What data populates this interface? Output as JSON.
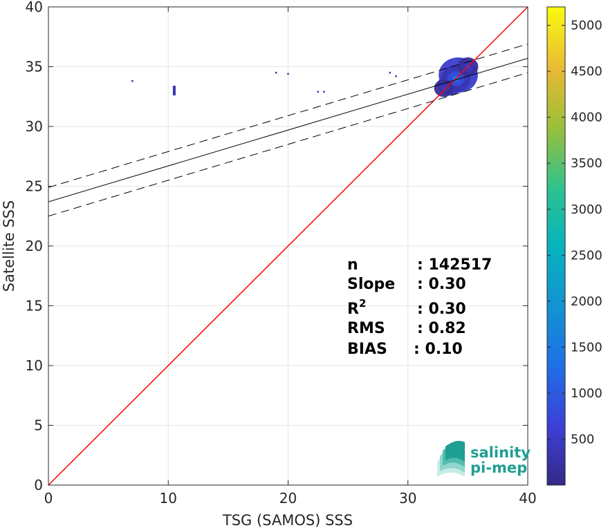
{
  "chart_data": {
    "type": "heatmap",
    "title": "",
    "xlabel": "TSG (SAMOS) SSS",
    "ylabel": "Satellite SSS",
    "xlim": [
      0,
      40
    ],
    "ylim": [
      0,
      40
    ],
    "xticks": [
      "0",
      "10",
      "20",
      "30",
      "40"
    ],
    "yticks": [
      "0",
      "5",
      "10",
      "15",
      "20",
      "25",
      "30",
      "35",
      "40"
    ],
    "grid": true,
    "colormap": "parula",
    "colorbar": {
      "min": 0,
      "max": 5200,
      "ticks": [
        "500",
        "1000",
        "1500",
        "2000",
        "2500",
        "3000",
        "3500",
        "4000",
        "4500",
        "5000"
      ],
      "tick_values": [
        500,
        1000,
        1500,
        2000,
        2500,
        3000,
        3500,
        4000,
        4500,
        5000
      ]
    },
    "identity_line": {
      "color": "#ff0000",
      "from": [
        0,
        0
      ],
      "to": [
        40,
        40
      ]
    },
    "fit_line": {
      "color": "#000000",
      "intercept": 23.7,
      "slope": 0.3
    },
    "fit_band": {
      "offset": 1.2,
      "style": "dashed"
    },
    "density_points": [
      {
        "x": 33.5,
        "y": 33.5,
        "count": 900
      },
      {
        "x": 34.2,
        "y": 34.3,
        "count": 2200
      },
      {
        "x": 34.0,
        "y": 34.0,
        "count": 1400
      },
      {
        "x": 33.0,
        "y": 33.2,
        "count": 500
      },
      {
        "x": 35.0,
        "y": 35.0,
        "count": 600
      },
      {
        "x": 10.5,
        "y": 33.0,
        "count": 60
      },
      {
        "x": 7.0,
        "y": 33.8,
        "count": 20
      },
      {
        "x": 19.0,
        "y": 34.5,
        "count": 20
      },
      {
        "x": 20.0,
        "y": 34.4,
        "count": 20
      },
      {
        "x": 22.5,
        "y": 32.9,
        "count": 20
      },
      {
        "x": 23.0,
        "y": 32.9,
        "count": 20
      },
      {
        "x": 28.5,
        "y": 34.5,
        "count": 25
      },
      {
        "x": 29.0,
        "y": 34.2,
        "count": 25
      }
    ],
    "annotations": [
      {
        "label": "n",
        "value": ": 142517"
      },
      {
        "label": "Slope",
        "value": ": 0.30"
      },
      {
        "label": "R2",
        "value": ": 0.30"
      },
      {
        "label": "RMS",
        "value": ": 0.82"
      },
      {
        "label": "BIAS",
        "value": ": 0.10"
      }
    ]
  },
  "logo": {
    "line1": "salinity",
    "line2": "pi-mep",
    "color": "#1f9e93"
  }
}
